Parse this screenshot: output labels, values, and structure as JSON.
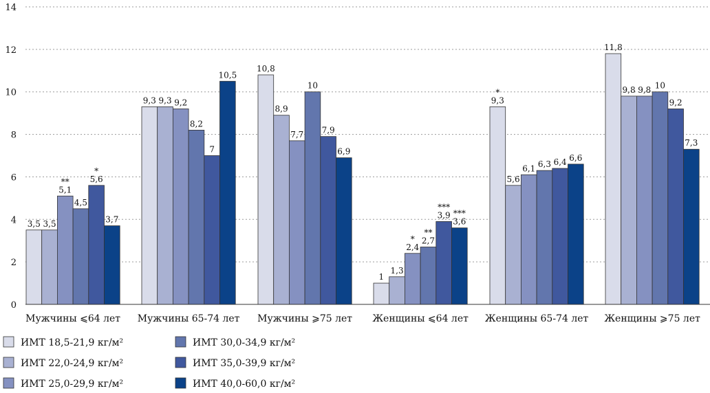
{
  "chart_data": {
    "type": "bar",
    "ylim": [
      0,
      14
    ],
    "yticks": [
      0,
      2,
      4,
      6,
      8,
      10,
      12,
      14
    ],
    "grid": true,
    "legend_position": "bottom",
    "categories": [
      "Мужчины ⩽64 лет",
      "Мужчины 65-74 лет",
      "Мужчины ⩾75 лет",
      "Женщины ⩽64 лет",
      "Женщины 65-74 лет",
      "Женщины ⩾75 лет"
    ],
    "series": [
      {
        "name": "ИМТ 18,5-21,9 кг/м²",
        "color": "#d9dcea",
        "values": [
          3.5,
          9.3,
          10.8,
          1,
          9.3,
          11.8
        ],
        "labels": [
          "3,5",
          "9,3",
          "10,8",
          "1",
          "9,3",
          "11,8"
        ],
        "stars": [
          "",
          "",
          "",
          "",
          "*",
          ""
        ]
      },
      {
        "name": "ИМТ 22,0-24,9 кг/м²",
        "color": "#a9b1d2",
        "values": [
          3.5,
          9.3,
          8.9,
          1.3,
          5.6,
          9.8
        ],
        "labels": [
          "3,5",
          "9,3",
          "8,9",
          "1,3",
          "5,6",
          "9,8"
        ],
        "stars": [
          "",
          "",
          "",
          "",
          "",
          ""
        ]
      },
      {
        "name": "ИМТ 25,0-29,9 кг/м²",
        "color": "#8591c1",
        "values": [
          5.1,
          9.2,
          7.7,
          2.4,
          6.1,
          9.8
        ],
        "labels": [
          "5,1",
          "9,2",
          "7,7",
          "2,4",
          "6,1",
          "9,8"
        ],
        "stars": [
          "**",
          "",
          "",
          "*",
          "",
          ""
        ]
      },
      {
        "name": "ИМТ 30,0-34,9 кг/м²",
        "color": "#6276ad",
        "values": [
          4.5,
          8.2,
          10,
          2.7,
          6.3,
          10
        ],
        "labels": [
          "4,5",
          "8,2",
          "10",
          "2,7",
          "6,3",
          "10"
        ],
        "stars": [
          "",
          "",
          "",
          "**",
          "",
          ""
        ]
      },
      {
        "name": "ИМТ 35,0-39,9 кг/м²",
        "color": "#40589e",
        "values": [
          5.6,
          7,
          7.9,
          3.9,
          6.4,
          9.2
        ],
        "labels": [
          "5,6",
          "7",
          "7,9",
          "3,9",
          "6,4",
          "9,2"
        ],
        "stars": [
          "*",
          "",
          "",
          "***",
          "",
          ""
        ]
      },
      {
        "name": "ИМТ 40,0-60,0 кг/м²",
        "color": "#0b4288",
        "values": [
          3.7,
          10.5,
          6.9,
          3.6,
          6.6,
          7.3
        ],
        "labels": [
          "3,7",
          "10,5",
          "6,9",
          "3,6",
          "6,6",
          "7,3"
        ],
        "stars": [
          "",
          "",
          "",
          "***",
          "",
          ""
        ]
      }
    ]
  }
}
